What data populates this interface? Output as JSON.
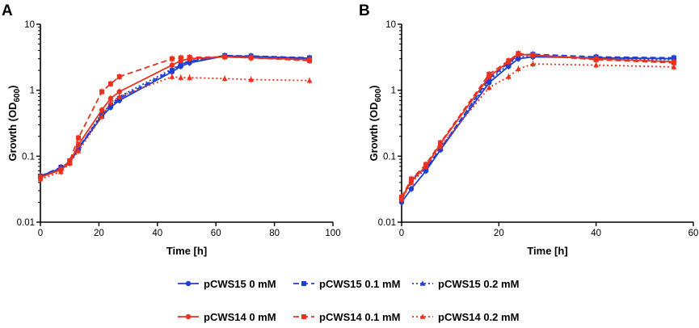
{
  "chart_data": [
    {
      "panel": "A",
      "type": "line",
      "xlabel": "Time [h]",
      "ylabel_main": "Growth (OD",
      "ylabel_sub": "600",
      "ylabel_end": ")",
      "y_scale": "log",
      "xlim": [
        0,
        100
      ],
      "ylim": [
        0.01,
        10
      ],
      "xticks": [
        0,
        20,
        40,
        60,
        80,
        100
      ],
      "yticks": [
        0.01,
        0.1,
        1,
        10
      ],
      "ytick_labels": [
        "0.01",
        "0.1",
        "1",
        "10"
      ],
      "series": [
        {
          "name": "pCWS15 0 mM",
          "color": "#1f3fcf",
          "dash": "",
          "marker": "circle",
          "x": [
            0,
            7,
            10,
            13,
            21,
            24,
            27,
            45,
            48,
            51,
            63,
            72,
            92
          ],
          "y": [
            0.05,
            0.065,
            0.08,
            0.13,
            0.4,
            0.55,
            0.7,
            1.9,
            2.3,
            2.6,
            3.3,
            3.25,
            3.05
          ]
        },
        {
          "name": "pCWS15 0.1 mM",
          "color": "#1f3fcf",
          "dash": "7,4",
          "marker": "square",
          "x": [
            0,
            7,
            10,
            13,
            21,
            24,
            27,
            45,
            48,
            51,
            63,
            72,
            92
          ],
          "y": [
            0.05,
            0.068,
            0.082,
            0.135,
            0.42,
            0.58,
            0.75,
            2.0,
            2.45,
            2.75,
            3.35,
            3.3,
            3.1
          ]
        },
        {
          "name": "pCWS15 0.2 mM",
          "color": "#1f3fcf",
          "dash": "2,3",
          "marker": "triangle",
          "x": [
            0,
            7,
            10,
            13,
            21,
            24,
            27,
            45,
            48,
            51,
            63,
            72,
            92
          ],
          "y": [
            0.05,
            0.066,
            0.08,
            0.13,
            0.45,
            0.6,
            0.8,
            2.1,
            2.5,
            2.8,
            3.3,
            3.25,
            3.0
          ]
        },
        {
          "name": "pCWS14 0 mM",
          "color": "#e8321e",
          "dash": "",
          "marker": "circle",
          "x": [
            0,
            7,
            10,
            13,
            21,
            24,
            27,
            45,
            48,
            51,
            63,
            72,
            92
          ],
          "y": [
            0.048,
            0.062,
            0.08,
            0.15,
            0.5,
            0.75,
            0.95,
            2.4,
            2.8,
            3.0,
            3.2,
            3.1,
            2.9
          ]
        },
        {
          "name": "pCWS14 0.1 mM",
          "color": "#e8321e",
          "dash": "7,4",
          "marker": "square",
          "x": [
            0,
            7,
            10,
            13,
            21,
            24,
            27,
            45,
            48,
            51,
            63,
            72,
            92
          ],
          "y": [
            0.048,
            0.063,
            0.085,
            0.19,
            0.95,
            1.25,
            1.6,
            3.0,
            3.1,
            3.15,
            3.2,
            3.1,
            2.8
          ]
        },
        {
          "name": "pCWS14 0.2 mM",
          "color": "#e8321e",
          "dash": "2,3",
          "marker": "triangle",
          "x": [
            0,
            7,
            10,
            13,
            21,
            24,
            27,
            45,
            48,
            51,
            63,
            72,
            92
          ],
          "y": [
            0.045,
            0.058,
            0.078,
            0.12,
            0.4,
            0.65,
            0.8,
            1.6,
            1.55,
            1.55,
            1.5,
            1.45,
            1.4
          ]
        }
      ]
    },
    {
      "panel": "B",
      "type": "line",
      "xlabel": "Time [h]",
      "ylabel_main": "Growth (OD",
      "ylabel_sub": "600",
      "ylabel_end": ")",
      "y_scale": "log",
      "xlim": [
        0,
        60
      ],
      "ylim": [
        0.01,
        10
      ],
      "xticks": [
        0,
        20,
        40,
        60
      ],
      "yticks": [
        0.01,
        0.1,
        1,
        10
      ],
      "ytick_labels": [
        "0.01",
        "0.1",
        "1",
        "10"
      ],
      "series": [
        {
          "name": "pCWS15 0 mM",
          "color": "#1f3fcf",
          "dash": "",
          "marker": "circle",
          "x": [
            0,
            2,
            5,
            8,
            18,
            22,
            24,
            27,
            40,
            56
          ],
          "y": [
            0.02,
            0.032,
            0.06,
            0.125,
            1.3,
            2.3,
            3.0,
            3.2,
            3.1,
            3.0
          ]
        },
        {
          "name": "pCWS15 0.1 mM",
          "color": "#1f3fcf",
          "dash": "7,4",
          "marker": "square",
          "x": [
            0,
            2,
            5,
            8,
            18,
            22,
            24,
            27,
            40,
            56
          ],
          "y": [
            0.022,
            0.045,
            0.065,
            0.13,
            1.5,
            2.6,
            3.4,
            3.5,
            3.2,
            3.1
          ]
        },
        {
          "name": "pCWS15 0.2 mM",
          "color": "#1f3fcf",
          "dash": "2,3",
          "marker": "triangle",
          "x": [
            0,
            2,
            5,
            8,
            18,
            22,
            24,
            27,
            40,
            56
          ],
          "y": [
            0.022,
            0.04,
            0.065,
            0.13,
            1.4,
            2.5,
            3.2,
            3.3,
            3.0,
            2.9
          ]
        },
        {
          "name": "pCWS14 0 mM",
          "color": "#e8321e",
          "dash": "",
          "marker": "circle",
          "x": [
            0,
            2,
            5,
            8,
            18,
            22,
            24,
            27,
            40,
            56
          ],
          "y": [
            0.023,
            0.042,
            0.07,
            0.155,
            1.6,
            2.7,
            3.5,
            3.4,
            3.0,
            2.7
          ]
        },
        {
          "name": "pCWS14 0.1 mM",
          "color": "#e8321e",
          "dash": "7,4",
          "marker": "square",
          "x": [
            0,
            2,
            5,
            8,
            18,
            22,
            24,
            27,
            40,
            56
          ],
          "y": [
            0.024,
            0.045,
            0.075,
            0.16,
            1.75,
            2.8,
            3.6,
            3.4,
            2.9,
            2.6
          ]
        },
        {
          "name": "pCWS14 0.2 mM",
          "color": "#e8321e",
          "dash": "2,3",
          "marker": "triangle",
          "x": [
            0,
            2,
            5,
            8,
            18,
            22,
            24,
            27,
            40,
            56
          ],
          "y": [
            0.022,
            0.04,
            0.07,
            0.14,
            1.1,
            1.6,
            2.1,
            2.5,
            2.4,
            2.25
          ]
        }
      ]
    }
  ],
  "legend": {
    "items": [
      {
        "label": "pCWS15 0 mM",
        "color": "#1f3fcf",
        "dash": "",
        "marker": "circle"
      },
      {
        "label": "pCWS15 0.1 mM",
        "color": "#1f3fcf",
        "dash": "7,4",
        "marker": "square"
      },
      {
        "label": "pCWS15 0.2 mM",
        "color": "#1f3fcf",
        "dash": "2,3",
        "marker": "triangle"
      },
      {
        "label": "pCWS14 0 mM",
        "color": "#e8321e",
        "dash": "",
        "marker": "circle"
      },
      {
        "label": "pCWS14 0.1 mM",
        "color": "#e8321e",
        "dash": "7,4",
        "marker": "square"
      },
      {
        "label": "pCWS14 0.2 mM",
        "color": "#e8321e",
        "dash": "2,3",
        "marker": "triangle"
      }
    ]
  }
}
